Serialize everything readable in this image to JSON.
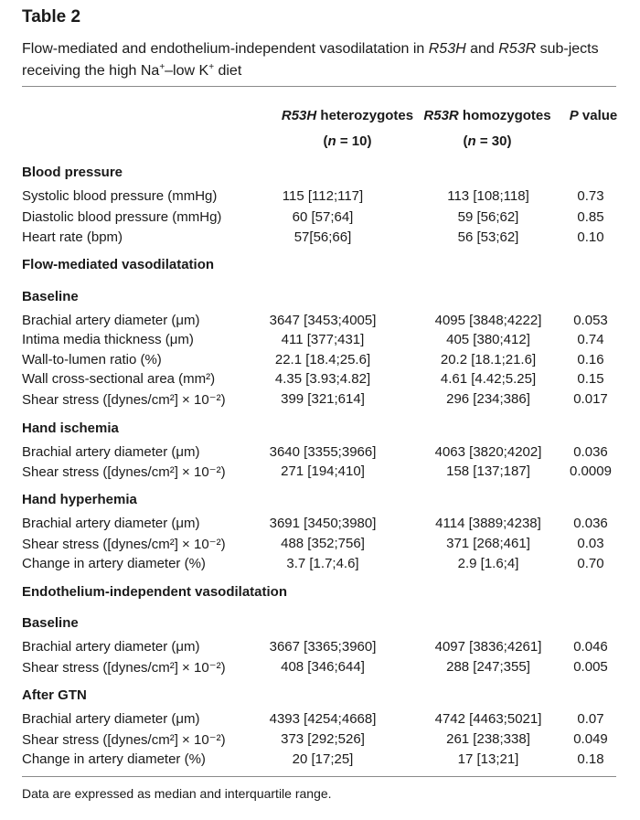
{
  "table": {
    "title": "Table 2",
    "caption": {
      "part1": "Flow-mediated and endothelium-independent vasodilatation in ",
      "gene1": "R53H",
      "part2": " and ",
      "gene2": "R53R",
      "part3": " sub-jects receiving the high Na",
      "sup1": "+",
      "part4": "–low K",
      "sup2": "+",
      "part5": " diet"
    },
    "columns": [
      {
        "gene": "R53H",
        "label": "heterozygotes",
        "n_pre": "(",
        "n_var": "n",
        "n_val": " = 10)"
      },
      {
        "gene": "R53R",
        "label": "homozygotes",
        "n_pre": "(",
        "n_var": "n",
        "n_val": " = 30)"
      },
      {
        "gene": "P",
        "label": "value"
      }
    ],
    "sections": [
      {
        "heading": "Blood pressure",
        "rows": [
          {
            "label": "Systolic blood pressure (mmHg)",
            "v1": "115 [112;117]",
            "v2": "113 [108;118]",
            "p": "0.73"
          },
          {
            "label": "Diastolic blood pressure (mmHg)",
            "v1": "60 [57;64]",
            "v2": "59 [56;62]",
            "p": "0.85"
          },
          {
            "label": "Heart rate (bpm)",
            "v1": "57[56;66]",
            "v2": "56 [53;62]",
            "p": "0.10"
          }
        ]
      },
      {
        "heading": "Flow-mediated vasodilatation",
        "rows": []
      },
      {
        "heading": "Baseline",
        "rows": [
          {
            "label": "Brachial artery diameter (μm)",
            "v1": "3647 [3453;4005]",
            "v2": "4095 [3848;4222]",
            "p": "0.053"
          },
          {
            "label": "Intima media thickness (μm)",
            "v1": "411 [377;431]",
            "v2": "405 [380;412]",
            "p": "0.74"
          },
          {
            "label": "Wall-to-lumen ratio (%)",
            "v1": "22.1 [18.4;25.6]",
            "v2": "20.2 [18.1;21.6]",
            "p": "0.16"
          },
          {
            "label": "Wall cross-sectional area (mm²)",
            "v1": "4.35 [3.93;4.82]",
            "v2": "4.61 [4.42;5.25]",
            "p": "0.15"
          },
          {
            "label": "Shear stress ([dynes/cm²] × 10⁻²)",
            "v1": "399 [321;614]",
            "v2": "296 [234;386]",
            "p": "0.017"
          }
        ]
      },
      {
        "heading": "Hand ischemia",
        "rows": [
          {
            "label": "Brachial artery diameter (μm)",
            "v1": "3640 [3355;3966]",
            "v2": "4063 [3820;4202]",
            "p": "0.036"
          },
          {
            "label": "Shear stress ([dynes/cm²] × 10⁻²)",
            "v1": "271 [194;410]",
            "v2": "158 [137;187]",
            "p": "0.0009"
          }
        ]
      },
      {
        "heading": "Hand hyperhemia",
        "rows": [
          {
            "label": "Brachial artery diameter (μm)",
            "v1": "3691 [3450;3980]",
            "v2": "4114 [3889;4238]",
            "p": "0.036"
          },
          {
            "label": "Shear stress ([dynes/cm²] × 10⁻²)",
            "v1": "488 [352;756]",
            "v2": "371 [268;461]",
            "p": "0.03"
          },
          {
            "label": "Change in artery diameter (%)",
            "v1": "3.7 [1.7;4.6]",
            "v2": "2.9 [1.6;4]",
            "p": "0.70"
          }
        ]
      },
      {
        "heading": "Endothelium-independent vasodilatation",
        "rows": []
      },
      {
        "heading": "Baseline",
        "rows": [
          {
            "label": "Brachial artery diameter (μm)",
            "v1": "3667 [3365;3960]",
            "v2": "4097 [3836;4261]",
            "p": "0.046"
          },
          {
            "label": "Shear stress ([dynes/cm²] × 10⁻²)",
            "v1": "408 [346;644]",
            "v2": "288 [247;355]",
            "p": "0.005"
          }
        ]
      },
      {
        "heading": "After GTN",
        "rows": [
          {
            "label": "Brachial artery diameter (μm)",
            "v1": "4393 [4254;4668]",
            "v2": "4742 [4463;5021]",
            "p": "0.07"
          },
          {
            "label": "Shear stress ([dynes/cm²] × 10⁻²)",
            "v1": "373 [292;526]",
            "v2": "261 [238;338]",
            "p": "0.049"
          },
          {
            "label": "Change in artery diameter (%)",
            "v1": "20 [17;25]",
            "v2": "17 [13;21]",
            "p": "0.18"
          }
        ]
      }
    ],
    "footnote": "Data are expressed as median and interquartile range."
  }
}
